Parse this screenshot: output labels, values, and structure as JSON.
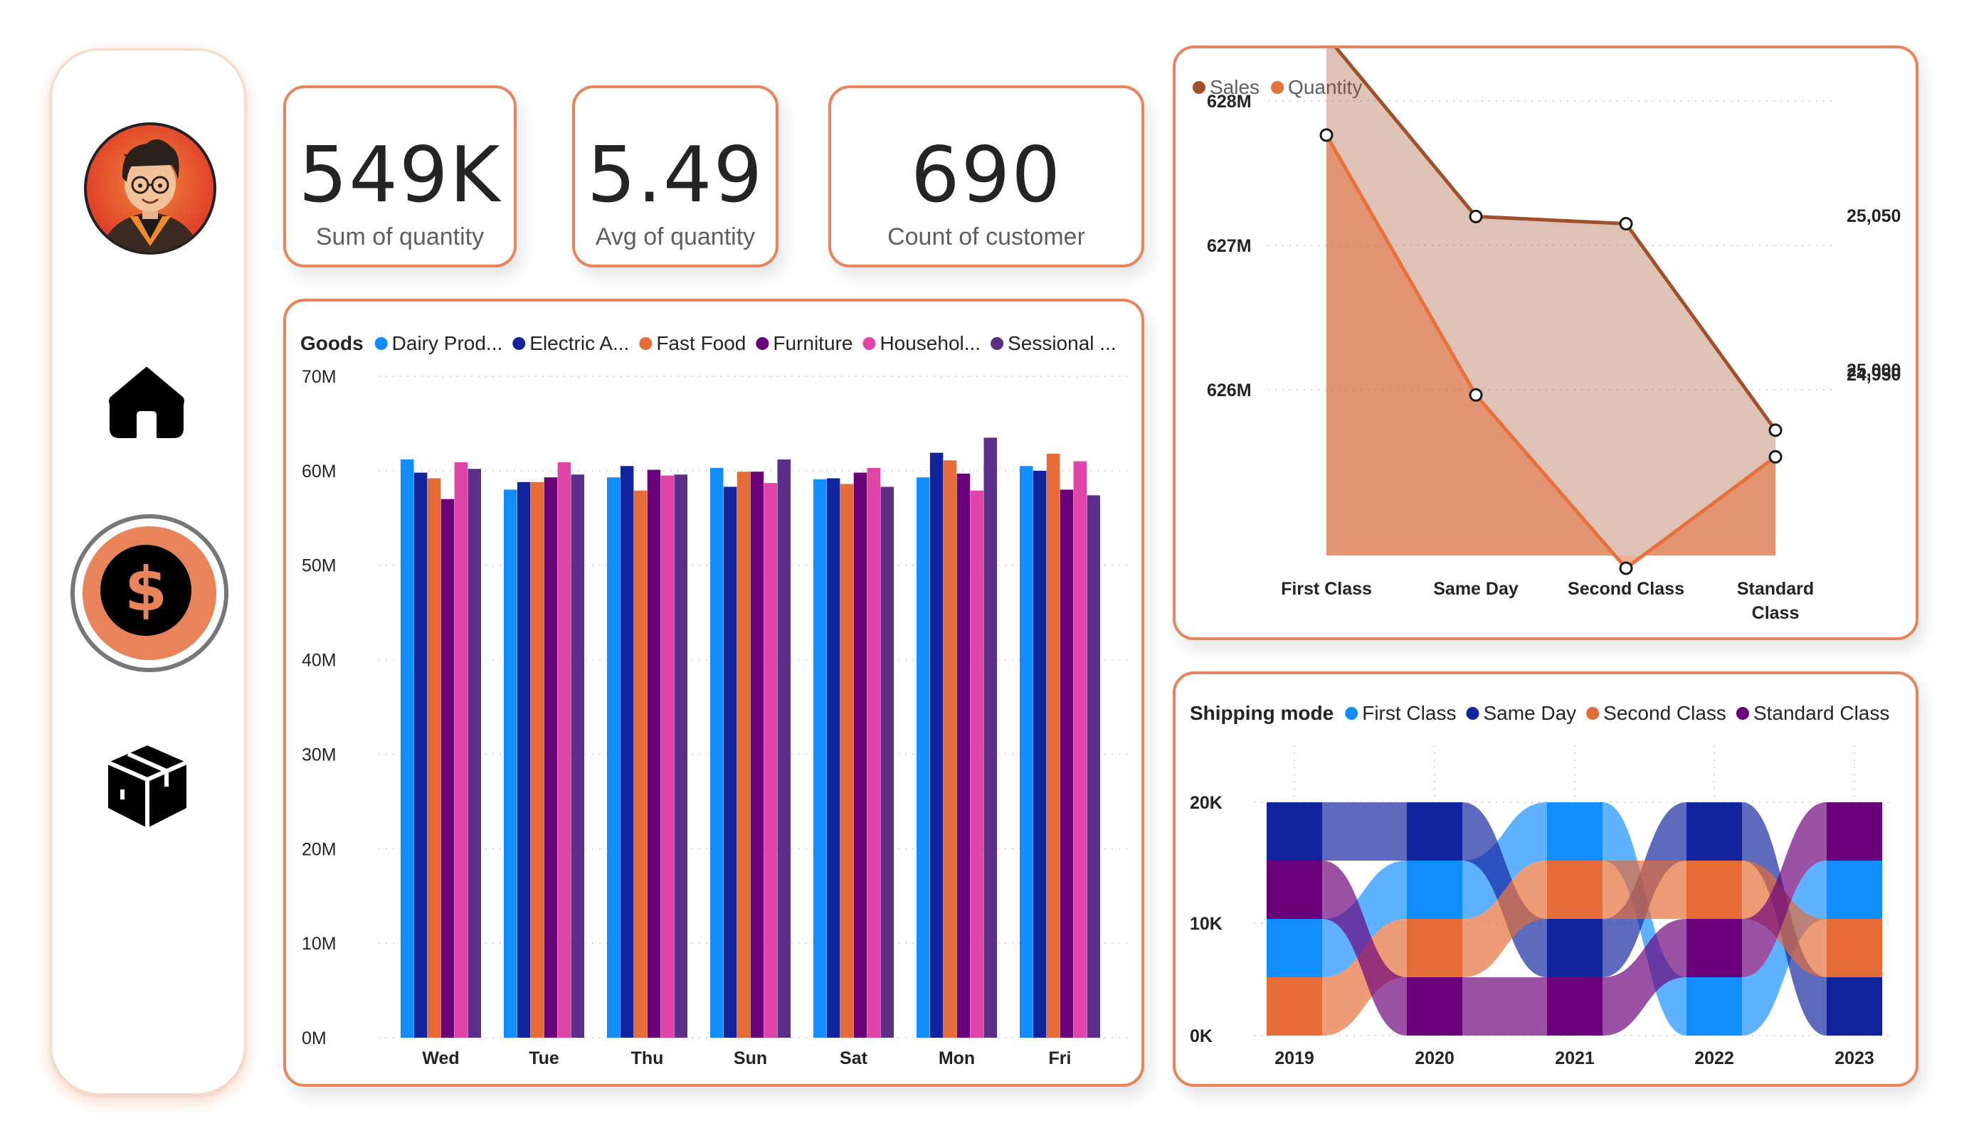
{
  "kpis": [
    {
      "value": "549K",
      "label": "Sum of quantity"
    },
    {
      "value": "5.49",
      "label": "Avg of quantity"
    },
    {
      "value": "690",
      "label": "Count of customer"
    }
  ],
  "sidebar": {
    "nav": [
      {
        "icon": "home-icon"
      },
      {
        "icon": "dollar-icon",
        "active": true
      },
      {
        "icon": "box-icon"
      }
    ]
  },
  "colors": {
    "accent": "#e8835a",
    "blue": "#118dff",
    "navy": "#12239e",
    "orange": "#e66c37",
    "purple": "#6b007b",
    "pink": "#e044a7",
    "violet": "#5b2e8a",
    "sales": "#a0502a",
    "quantity": "#e8703a"
  },
  "chart_data": [
    {
      "type": "bar",
      "legend_title": "Goods",
      "categories": [
        "Wed",
        "Tue",
        "Thu",
        "Sun",
        "Sat",
        "Mon",
        "Fri"
      ],
      "ylim": [
        0,
        70
      ],
      "y_ticks": [
        "0M",
        "10M",
        "20M",
        "30M",
        "40M",
        "50M",
        "60M",
        "70M"
      ],
      "series": [
        {
          "name": "Dairy Prod...",
          "color": "#118dff",
          "values": [
            61.2,
            58.0,
            59.3,
            60.3,
            59.1,
            59.3,
            60.5
          ]
        },
        {
          "name": "Electric A...",
          "color": "#12239e",
          "values": [
            59.8,
            58.8,
            60.5,
            58.3,
            59.2,
            61.9,
            60.0
          ]
        },
        {
          "name": "Fast Food",
          "color": "#e66c37",
          "values": [
            59.2,
            58.8,
            57.9,
            59.9,
            58.6,
            61.1,
            61.8
          ]
        },
        {
          "name": "Furniture",
          "color": "#6b007b",
          "values": [
            57.0,
            59.3,
            60.1,
            59.9,
            59.8,
            59.7,
            58.0
          ]
        },
        {
          "name": "Househol...",
          "color": "#e044a7",
          "values": [
            60.9,
            60.9,
            59.5,
            58.7,
            60.3,
            57.9,
            61.0
          ]
        },
        {
          "name": "Sessional ...",
          "color": "#5b2e8a",
          "values": [
            60.2,
            59.6,
            59.6,
            61.2,
            58.3,
            63.5,
            57.4
          ]
        }
      ]
    },
    {
      "type": "area",
      "categories": [
        "First Class",
        "Same Day",
        "Second Class",
        "Standard Class"
      ],
      "category_lines": [
        [
          "First Class"
        ],
        [
          "Same Day"
        ],
        [
          "Second Class"
        ],
        [
          "Standard",
          "Class"
        ]
      ],
      "y_left_ticks": [
        "626M",
        "627M",
        "628M"
      ],
      "y_right_ticks": [
        "24,950",
        "25,000",
        "25,050"
      ],
      "series": [
        {
          "name": "Sales",
          "axis": "left",
          "color": "#a0502a",
          "values": [
            628.45,
            627.2,
            627.15,
            625.72
          ]
        },
        {
          "name": "Quantity",
          "axis": "right",
          "color": "#e8703a",
          "values": [
            25076,
            24992,
            24936,
            24972
          ]
        }
      ]
    },
    {
      "type": "ribbon",
      "legend_title": "Shipping mode",
      "categories": [
        "2019",
        "2020",
        "2021",
        "2022",
        "2023"
      ],
      "y_ticks": [
        "0K",
        "10K",
        "20K"
      ],
      "series": [
        {
          "name": "First Class",
          "color": "#118dff",
          "ranks": [
            2,
            3,
            4,
            1,
            3
          ]
        },
        {
          "name": "Same Day",
          "color": "#12239e",
          "ranks": [
            4,
            4,
            2,
            4,
            1
          ]
        },
        {
          "name": "Second Class",
          "color": "#e66c37",
          "ranks": [
            1,
            2,
            3,
            3,
            2
          ]
        },
        {
          "name": "Standard Class",
          "color": "#6b007b",
          "ranks": [
            3,
            1,
            1,
            2,
            4
          ]
        }
      ]
    }
  ]
}
